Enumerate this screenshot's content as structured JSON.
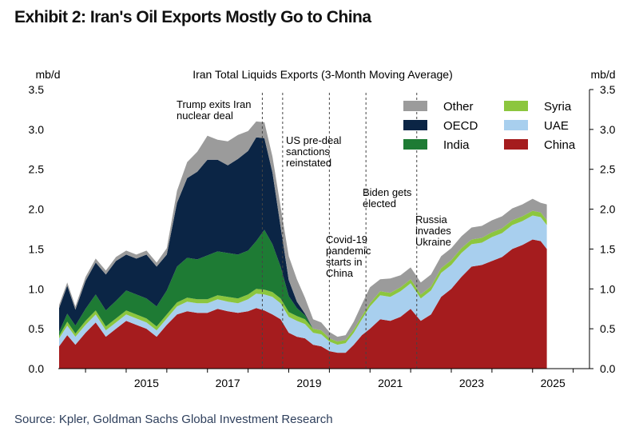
{
  "exhibit_title": "Exhibit 2: Iran's Oil Exports Mostly Go to China",
  "source": "Source: Kpler, Goldman Sachs Global Investment Research",
  "chart_data": {
    "type": "area",
    "title": "Iran Total Liquids Exports (3-Month Moving Average)",
    "left_unit": "mb/d",
    "right_unit": "mb/d",
    "ylim": [
      0,
      3.5
    ],
    "xlim": [
      2013.33,
      2026.4
    ],
    "y_ticks": [
      "0.0",
      "0.5",
      "1.0",
      "1.5",
      "2.0",
      "2.5",
      "3.0",
      "3.5"
    ],
    "x_ticks": [
      "2015",
      "2017",
      "2019",
      "2021",
      "2023",
      "2025"
    ],
    "legend_position": "top-right",
    "grid": false,
    "x": [
      2013.35,
      2013.55,
      2013.75,
      2014.0,
      2014.25,
      2014.5,
      2014.75,
      2015.0,
      2015.25,
      2015.5,
      2015.75,
      2016.0,
      2016.25,
      2016.5,
      2016.75,
      2017.0,
      2017.25,
      2017.5,
      2017.75,
      2018.0,
      2018.2,
      2018.4,
      2018.6,
      2018.8,
      2019.0,
      2019.2,
      2019.4,
      2019.6,
      2019.8,
      2020.0,
      2020.2,
      2020.4,
      2020.6,
      2020.8,
      2021.0,
      2021.25,
      2021.5,
      2021.75,
      2022.0,
      2022.25,
      2022.5,
      2022.75,
      2023.0,
      2023.25,
      2023.5,
      2023.75,
      2024.0,
      2024.25,
      2024.5,
      2024.75,
      2025.0,
      2025.2,
      2025.35
    ],
    "series": [
      {
        "name": "China",
        "color": "#a51c1e",
        "values": [
          0.28,
          0.42,
          0.3,
          0.45,
          0.58,
          0.4,
          0.5,
          0.6,
          0.55,
          0.5,
          0.4,
          0.55,
          0.68,
          0.72,
          0.7,
          0.7,
          0.75,
          0.72,
          0.7,
          0.72,
          0.76,
          0.73,
          0.68,
          0.62,
          0.45,
          0.4,
          0.38,
          0.3,
          0.28,
          0.22,
          0.2,
          0.2,
          0.3,
          0.42,
          0.5,
          0.62,
          0.6,
          0.65,
          0.75,
          0.6,
          0.68,
          0.9,
          1.0,
          1.15,
          1.28,
          1.3,
          1.35,
          1.4,
          1.5,
          1.55,
          1.62,
          1.6,
          1.5
        ]
      },
      {
        "name": "UAE",
        "color": "#a8cfee",
        "values": [
          0.1,
          0.12,
          0.1,
          0.1,
          0.1,
          0.08,
          0.08,
          0.08,
          0.08,
          0.08,
          0.08,
          0.08,
          0.1,
          0.12,
          0.12,
          0.12,
          0.12,
          0.12,
          0.12,
          0.15,
          0.18,
          0.2,
          0.22,
          0.2,
          0.2,
          0.2,
          0.18,
          0.15,
          0.15,
          0.12,
          0.1,
          0.12,
          0.15,
          0.2,
          0.28,
          0.3,
          0.3,
          0.32,
          0.32,
          0.28,
          0.3,
          0.3,
          0.3,
          0.3,
          0.28,
          0.28,
          0.3,
          0.3,
          0.3,
          0.3,
          0.3,
          0.3,
          0.3
        ]
      },
      {
        "name": "Syria",
        "color": "#8cc63e",
        "values": [
          0.03,
          0.05,
          0.04,
          0.05,
          0.05,
          0.05,
          0.05,
          0.05,
          0.05,
          0.05,
          0.05,
          0.05,
          0.05,
          0.05,
          0.05,
          0.05,
          0.05,
          0.06,
          0.06,
          0.06,
          0.06,
          0.06,
          0.06,
          0.06,
          0.06,
          0.06,
          0.06,
          0.05,
          0.05,
          0.04,
          0.04,
          0.04,
          0.04,
          0.04,
          0.04,
          0.05,
          0.05,
          0.05,
          0.05,
          0.05,
          0.05,
          0.06,
          0.06,
          0.06,
          0.06,
          0.06,
          0.06,
          0.06,
          0.06,
          0.06,
          0.06,
          0.06,
          0.06
        ]
      },
      {
        "name": "India",
        "color": "#1e7b34",
        "values": [
          0.05,
          0.1,
          0.1,
          0.15,
          0.2,
          0.2,
          0.22,
          0.25,
          0.25,
          0.25,
          0.25,
          0.3,
          0.45,
          0.5,
          0.5,
          0.55,
          0.55,
          0.55,
          0.55,
          0.55,
          0.6,
          0.75,
          0.6,
          0.4,
          0.2,
          0.1,
          0.05,
          0.0,
          0.0,
          0.0,
          0.0,
          0.0,
          0.0,
          0.0,
          0.0,
          0.0,
          0.0,
          0.0,
          0.0,
          0.0,
          0.0,
          0.0,
          0.0,
          0.0,
          0.0,
          0.0,
          0.0,
          0.0,
          0.0,
          0.0,
          0.0,
          0.0,
          0.0
        ]
      },
      {
        "name": "OECD",
        "color": "#0b2545",
        "values": [
          0.3,
          0.35,
          0.2,
          0.35,
          0.4,
          0.45,
          0.5,
          0.45,
          0.45,
          0.55,
          0.5,
          0.45,
          0.8,
          1.0,
          1.1,
          1.2,
          1.15,
          1.1,
          1.2,
          1.25,
          1.3,
          1.15,
          0.9,
          0.5,
          0.2,
          0.08,
          0.02,
          0.0,
          0.0,
          0.0,
          0.0,
          0.0,
          0.0,
          0.0,
          0.0,
          0.0,
          0.0,
          0.0,
          0.0,
          0.0,
          0.0,
          0.0,
          0.0,
          0.0,
          0.0,
          0.0,
          0.0,
          0.0,
          0.0,
          0.0,
          0.0,
          0.0,
          0.0
        ]
      },
      {
        "name": "Other",
        "color": "#9b9b9b",
        "values": [
          0.04,
          0.04,
          0.04,
          0.05,
          0.05,
          0.05,
          0.05,
          0.05,
          0.05,
          0.05,
          0.05,
          0.08,
          0.15,
          0.2,
          0.25,
          0.3,
          0.25,
          0.3,
          0.3,
          0.25,
          0.2,
          0.2,
          0.2,
          0.25,
          0.3,
          0.28,
          0.2,
          0.12,
          0.1,
          0.08,
          0.06,
          0.06,
          0.1,
          0.15,
          0.2,
          0.15,
          0.18,
          0.15,
          0.15,
          0.15,
          0.15,
          0.15,
          0.15,
          0.15,
          0.15,
          0.15,
          0.15,
          0.15,
          0.15,
          0.15,
          0.15,
          0.12,
          0.2
        ]
      }
    ],
    "legend_order": [
      "Other",
      "Syria",
      "OECD",
      "UAE",
      "India",
      "China"
    ],
    "events": [
      {
        "x": 2018.35,
        "label": [
          "Trump exits Iran",
          "nuclear deal"
        ]
      },
      {
        "x": 2018.85,
        "label": [
          "US pre-deal",
          "sanctions",
          "reinstated"
        ]
      },
      {
        "x": 2020.0,
        "label": [
          "Covid-19",
          "pandemic",
          "starts in",
          "China"
        ]
      },
      {
        "x": 2020.9,
        "label": [
          "Biden gets",
          "elected"
        ]
      },
      {
        "x": 2022.15,
        "label": [
          "Russia",
          "invades",
          "Ukraine"
        ]
      }
    ]
  }
}
